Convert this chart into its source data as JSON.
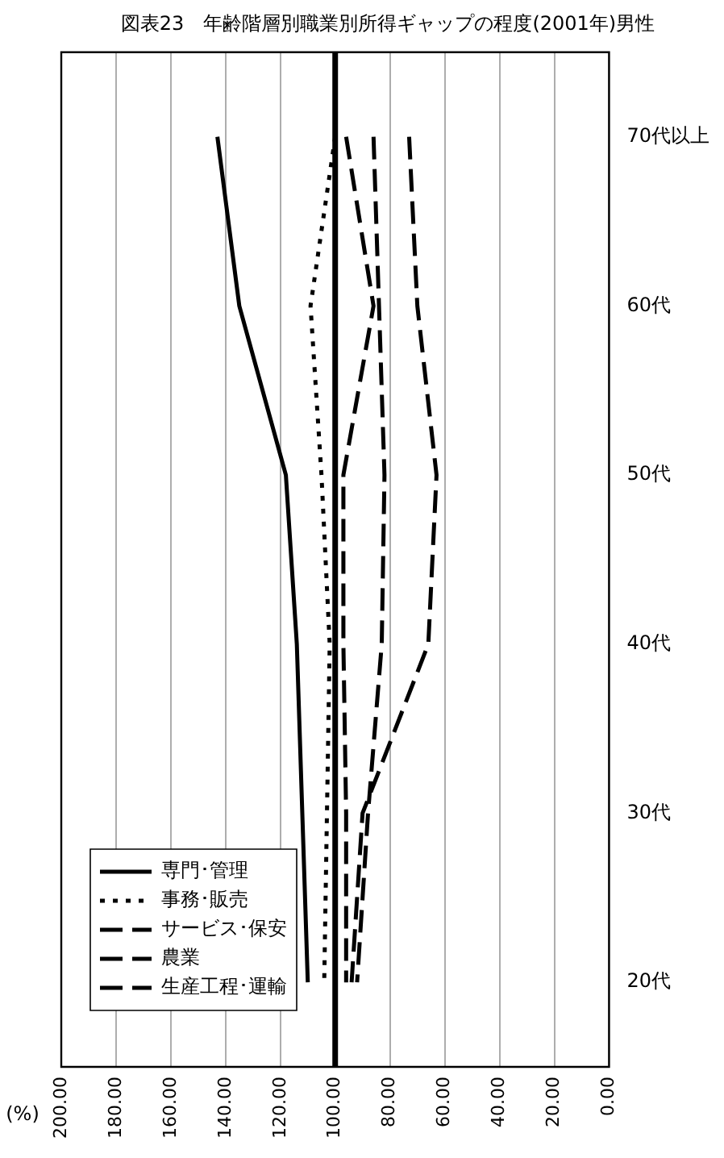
{
  "chart_data": {
    "type": "line",
    "orientation": "horizontal",
    "title": "図表23　年齢階層別職業別所得ギャップの程度(2001年)男性",
    "xlabel": "(%)",
    "categories": [
      "70代以上",
      "60代",
      "50代",
      "40代",
      "30代",
      "20代"
    ],
    "series": [
      {
        "name": "専門･管理",
        "color": "#000000",
        "line_style": "solid",
        "values": [
          143,
          135,
          118,
          114,
          112,
          110
        ]
      },
      {
        "name": "事務･販売",
        "color": "#000000",
        "line_style": "dotted",
        "values": [
          100,
          109,
          105,
          102,
          103,
          104
        ]
      },
      {
        "name": "サービス･保安",
        "color": "#000000",
        "line_style": "dashed",
        "values": [
          96,
          86,
          97,
          97,
          96,
          96
        ]
      },
      {
        "name": "農業",
        "color": "#000000",
        "line_style": "dashed",
        "values": [
          73,
          70,
          63,
          66,
          90,
          94
        ]
      },
      {
        "name": "生産工程･運輸",
        "color": "#000000",
        "line_style": "dashed",
        "values": [
          86,
          84,
          82,
          83,
          88,
          92
        ]
      }
    ],
    "xlim": [
      200,
      0
    ],
    "xticks": [
      {
        "value": 200,
        "label": "200.00"
      },
      {
        "value": 180,
        "label": "180.00"
      },
      {
        "value": 160,
        "label": "160.00"
      },
      {
        "value": 140,
        "label": "140.00"
      },
      {
        "value": 120,
        "label": "120.00"
      },
      {
        "value": 100,
        "label": "100.00"
      },
      {
        "value": 80,
        "label": "80.00"
      },
      {
        "value": 60,
        "label": "60.00"
      },
      {
        "value": 40,
        "label": "40.00"
      },
      {
        "value": 20,
        "label": "20.00"
      },
      {
        "value": 0,
        "label": "0.00"
      }
    ],
    "ref_lines": [
      {
        "axis": "x",
        "value": 100,
        "color": "#000000"
      }
    ],
    "grid": "x",
    "legend": "bottom left",
    "marker": "none"
  }
}
